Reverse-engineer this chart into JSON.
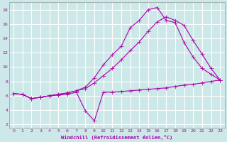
{
  "background_color": "#cde8e8",
  "grid_color": "#ffffff",
  "line_color": "#aa00aa",
  "xlabel": "Windchill (Refroidissement éolien,°C)",
  "xlim": [
    -0.5,
    23.5
  ],
  "ylim": [
    1.5,
    19.0
  ],
  "yticks": [
    2,
    4,
    6,
    8,
    10,
    12,
    14,
    16,
    18
  ],
  "xticks": [
    0,
    1,
    2,
    3,
    4,
    5,
    6,
    7,
    8,
    9,
    10,
    11,
    12,
    13,
    14,
    15,
    16,
    17,
    18,
    19,
    20,
    21,
    22,
    23
  ],
  "line1_x": [
    0,
    1,
    2,
    3,
    4,
    5,
    6,
    7,
    8,
    9,
    10,
    11,
    12,
    13,
    14,
    15,
    16,
    17,
    18,
    19,
    20,
    21,
    22,
    23
  ],
  "line1_y": [
    6.3,
    6.2,
    5.6,
    5.8,
    6.0,
    6.1,
    6.2,
    6.5,
    3.9,
    2.5,
    6.5,
    6.5,
    6.6,
    6.7,
    6.8,
    6.9,
    7.0,
    7.1,
    7.3,
    7.5,
    7.6,
    7.8,
    8.0,
    8.2
  ],
  "line2_x": [
    0,
    1,
    2,
    3,
    4,
    5,
    6,
    7,
    8,
    9,
    10,
    11,
    12,
    13,
    14,
    15,
    16,
    17,
    18,
    19,
    20,
    21,
    22,
    23
  ],
  "line2_y": [
    6.3,
    6.2,
    5.6,
    5.8,
    6.0,
    6.2,
    6.4,
    6.7,
    7.2,
    8.5,
    10.3,
    11.7,
    12.9,
    15.5,
    16.5,
    18.0,
    18.3,
    16.5,
    16.2,
    13.4,
    11.4,
    9.8,
    9.0,
    8.2
  ],
  "line3_x": [
    0,
    1,
    2,
    3,
    4,
    5,
    6,
    7,
    8,
    9,
    10,
    11,
    12,
    13,
    14,
    15,
    16,
    17,
    18,
    19,
    20,
    21,
    22,
    23
  ],
  "line3_y": [
    6.3,
    6.2,
    5.6,
    5.8,
    6.0,
    6.2,
    6.4,
    6.7,
    7.0,
    7.8,
    8.8,
    9.8,
    11.0,
    12.3,
    13.5,
    15.0,
    16.3,
    17.0,
    16.5,
    15.8,
    13.7,
    11.8,
    9.8,
    8.2
  ]
}
